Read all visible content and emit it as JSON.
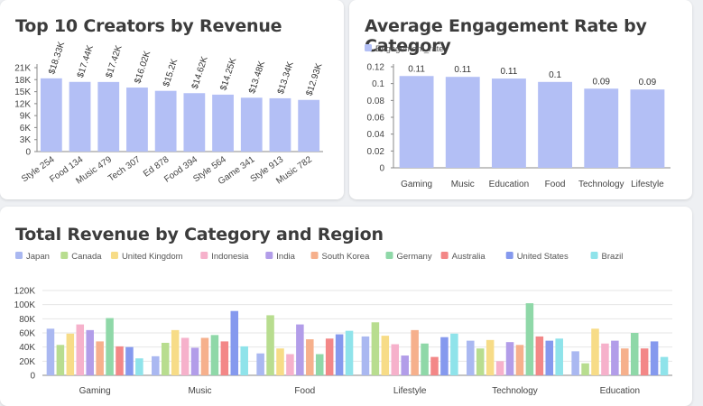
{
  "colors": {
    "bar": "#b3bff5",
    "axis": "#888888",
    "grid": "#e6e6e6",
    "series": [
      "#aab8f1",
      "#b8dd8f",
      "#f7dc87",
      "#f6b1cb",
      "#b29de9",
      "#f6b08c",
      "#8fd8a8",
      "#f38787",
      "#8599ee",
      "#8fe3ea"
    ]
  },
  "chart_data": [
    {
      "type": "bar",
      "title": "Top 10 Creators by Revenue",
      "categories": [
        "Style 254",
        "Food 134",
        "Music 479",
        "Tech 307",
        "Ed 878",
        "Food 394",
        "Style 564",
        "Game 341",
        "Style 913",
        "Music 782"
      ],
      "values": [
        18330,
        17440,
        17420,
        16020,
        15200,
        14620,
        14250,
        13480,
        13340,
        12930
      ],
      "data_labels": [
        "$18.33K",
        "$17.44K",
        "$17.42K",
        "$16.02K",
        "$15.2K",
        "$14.62K",
        "$14.25K",
        "$13.48K",
        "$13.34K",
        "$12.93K"
      ],
      "y_ticks": [
        "0",
        "3K",
        "6K",
        "9K",
        "12K",
        "15K",
        "18K",
        "21K"
      ],
      "ylim": [
        0,
        21000
      ],
      "grid": false
    },
    {
      "type": "bar",
      "title": "Average Engagement Rate by Category",
      "categories": [
        "Gaming",
        "Music",
        "Education",
        "Food",
        "Technology",
        "Lifestyle"
      ],
      "series": [
        {
          "name": "Engagement_rate",
          "values": [
            0.109,
            0.108,
            0.106,
            0.102,
            0.094,
            0.093
          ]
        }
      ],
      "data_labels": [
        "0.11",
        "0.11",
        "0.11",
        "0.1",
        "0.09",
        "0.09"
      ],
      "y_ticks": [
        "0",
        "0.02",
        "0.04",
        "0.06",
        "0.08",
        "0.1",
        "0.12"
      ],
      "ylim": [
        0,
        0.12
      ],
      "legend": "top-left",
      "grid": false
    },
    {
      "type": "bar",
      "title": "Total Revenue by Category and Region",
      "categories": [
        "Gaming",
        "Music",
        "Food",
        "Lifestyle",
        "Technology",
        "Education"
      ],
      "series": [
        {
          "name": "Japan",
          "values": [
            66000,
            27000,
            31000,
            55000,
            49000,
            34000
          ]
        },
        {
          "name": "Canada",
          "values": [
            43000,
            46000,
            85000,
            75000,
            38000,
            17000
          ]
        },
        {
          "name": "United Kingdom",
          "values": [
            59000,
            64000,
            38000,
            56000,
            50000,
            66000
          ]
        },
        {
          "name": "Indonesia",
          "values": [
            72000,
            53000,
            30000,
            44000,
            20000,
            45000
          ]
        },
        {
          "name": "India",
          "values": [
            64000,
            39000,
            72000,
            28000,
            47000,
            49000
          ]
        },
        {
          "name": "South Korea",
          "values": [
            48000,
            53000,
            51000,
            64000,
            43000,
            38000
          ]
        },
        {
          "name": "Germany",
          "values": [
            81000,
            57000,
            30000,
            45000,
            102000,
            60000
          ]
        },
        {
          "name": "Australia",
          "values": [
            41000,
            48000,
            52000,
            26000,
            55000,
            38000
          ]
        },
        {
          "name": "United States",
          "values": [
            40000,
            91000,
            58000,
            54000,
            49000,
            48000
          ]
        },
        {
          "name": "Brazil",
          "values": [
            24000,
            41000,
            63000,
            59000,
            52000,
            26000
          ]
        }
      ],
      "y_ticks": [
        "0",
        "20K",
        "40K",
        "60K",
        "80K",
        "100K",
        "120K"
      ],
      "ylim": [
        0,
        120000
      ],
      "legend": "top-left",
      "grid": true
    }
  ]
}
